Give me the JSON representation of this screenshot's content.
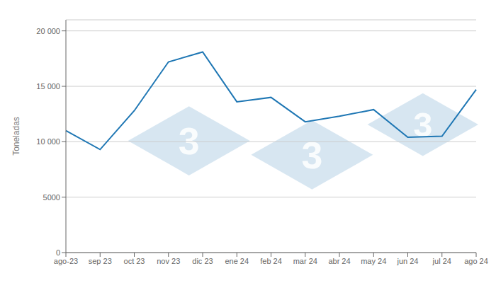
{
  "chart_data": {
    "type": "line",
    "categories": [
      "ago-23",
      "sep 23",
      "oct 23",
      "nov 23",
      "dic 23",
      "ene 24",
      "feb 24",
      "mar 24",
      "abr 24",
      "may 24",
      "jun 24",
      "jul 24",
      "ago 24"
    ],
    "values": [
      11000,
      9300,
      12800,
      17200,
      18100,
      13600,
      14000,
      11800,
      12300,
      12900,
      10400,
      10500,
      14700
    ],
    "color": "#1f77b4",
    "ylabel": "Toneladas",
    "ylim": [
      0,
      21000
    ],
    "yticks": [
      0,
      5000,
      {
        "value": 10000,
        "label": "10 000"
      },
      {
        "value": 15000,
        "label": "15 000"
      },
      {
        "value": 20000,
        "label": "20 000"
      }
    ],
    "grid": true,
    "annotations": [
      "3",
      "3",
      "3"
    ]
  }
}
